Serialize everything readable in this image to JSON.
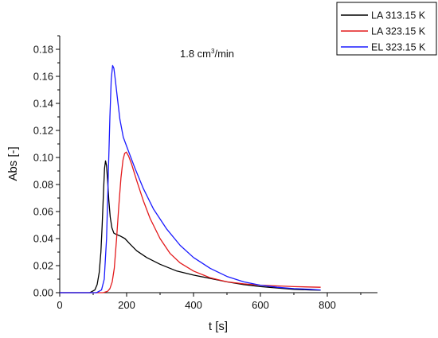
{
  "chart_data": {
    "type": "line",
    "annotation": {
      "text": "1.8 cm",
      "sup": "3",
      "suffix": "/min"
    },
    "xlabel": "t [s]",
    "ylabel": "Abs [-]",
    "xlim": [
      0,
      950
    ],
    "ylim": [
      0,
      0.19
    ],
    "xticks": [
      0,
      200,
      400,
      600,
      800
    ],
    "yticks": [
      0.0,
      0.02,
      0.04,
      0.06,
      0.08,
      0.1,
      0.12,
      0.14,
      0.16,
      0.18
    ],
    "legend_position": "top-right",
    "grid": false,
    "series": [
      {
        "name": "LA 313.15 K",
        "color": "#000000",
        "points": [
          [
            0,
            0
          ],
          [
            60,
            0
          ],
          [
            90,
            0.0
          ],
          [
            105,
            0.002
          ],
          [
            112,
            0.006
          ],
          [
            118,
            0.015
          ],
          [
            123,
            0.03
          ],
          [
            127,
            0.05
          ],
          [
            131,
            0.075
          ],
          [
            134,
            0.092
          ],
          [
            137,
            0.0975
          ],
          [
            140,
            0.094
          ],
          [
            143,
            0.083
          ],
          [
            147,
            0.068
          ],
          [
            151,
            0.056
          ],
          [
            156,
            0.048
          ],
          [
            162,
            0.044
          ],
          [
            170,
            0.043
          ],
          [
            180,
            0.042
          ],
          [
            195,
            0.04
          ],
          [
            210,
            0.036
          ],
          [
            230,
            0.031
          ],
          [
            260,
            0.026
          ],
          [
            300,
            0.021
          ],
          [
            350,
            0.016
          ],
          [
            400,
            0.013
          ],
          [
            450,
            0.0105
          ],
          [
            500,
            0.008
          ],
          [
            550,
            0.006
          ],
          [
            600,
            0.0045
          ],
          [
            650,
            0.0035
          ],
          [
            700,
            0.0025
          ],
          [
            750,
            0.002
          ],
          [
            780,
            0.0018
          ]
        ]
      },
      {
        "name": "LA 323.15 K",
        "color": "#e31a1c",
        "points": [
          [
            0,
            0
          ],
          [
            100,
            0
          ],
          [
            130,
            0.0
          ],
          [
            143,
            0.001
          ],
          [
            150,
            0.003
          ],
          [
            157,
            0.008
          ],
          [
            163,
            0.018
          ],
          [
            170,
            0.04
          ],
          [
            177,
            0.065
          ],
          [
            183,
            0.085
          ],
          [
            189,
            0.098
          ],
          [
            194,
            0.103
          ],
          [
            199,
            0.104
          ],
          [
            206,
            0.101
          ],
          [
            215,
            0.095
          ],
          [
            230,
            0.083
          ],
          [
            250,
            0.068
          ],
          [
            270,
            0.055
          ],
          [
            300,
            0.04
          ],
          [
            330,
            0.029
          ],
          [
            360,
            0.022
          ],
          [
            400,
            0.016
          ],
          [
            450,
            0.011
          ],
          [
            500,
            0.008
          ],
          [
            550,
            0.0065
          ],
          [
            600,
            0.0055
          ],
          [
            650,
            0.005
          ],
          [
            700,
            0.0045
          ],
          [
            780,
            0.004
          ]
        ]
      },
      {
        "name": "EL 323.15 K",
        "color": "#1a1aff",
        "points": [
          [
            0,
            0
          ],
          [
            80,
            0
          ],
          [
            110,
            0.0
          ],
          [
            125,
            0.002
          ],
          [
            133,
            0.01
          ],
          [
            140,
            0.04
          ],
          [
            145,
            0.085
          ],
          [
            150,
            0.13
          ],
          [
            154,
            0.158
          ],
          [
            158,
            0.168
          ],
          [
            162,
            0.166
          ],
          [
            166,
            0.158
          ],
          [
            172,
            0.145
          ],
          [
            180,
            0.128
          ],
          [
            190,
            0.115
          ],
          [
            205,
            0.105
          ],
          [
            225,
            0.092
          ],
          [
            250,
            0.077
          ],
          [
            280,
            0.062
          ],
          [
            320,
            0.047
          ],
          [
            360,
            0.035
          ],
          [
            400,
            0.026
          ],
          [
            450,
            0.018
          ],
          [
            500,
            0.012
          ],
          [
            550,
            0.008
          ],
          [
            600,
            0.0055
          ],
          [
            650,
            0.004
          ],
          [
            700,
            0.003
          ],
          [
            750,
            0.0025
          ],
          [
            780,
            0.002
          ]
        ]
      }
    ]
  }
}
